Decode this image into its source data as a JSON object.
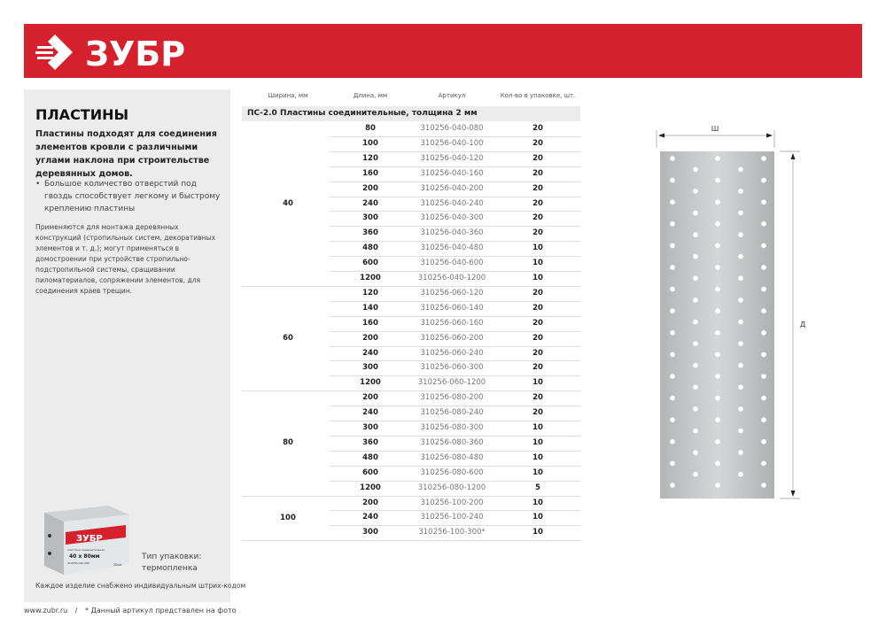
{
  "brand": {
    "logo_text": "ЗУБР",
    "color": "#d5202e"
  },
  "left": {
    "title": "ПЛАСТИНЫ",
    "lead": "Пластины подходят для соединения элементов кровли с различными углами наклона при строительстве деревянных домов.",
    "bullet": "Большое количество отверстий под гвоздь способствует легкому и быстрому креплению пластины",
    "apply": "Применяются для монтажа деревянных конструкций (стропильных систем, декоративных элементов и т. д.); могут применяться в домостроении при устройстве стропильно-подстропильной системы, сращивании пиломатериалов, сопряжении элементов, для соединения краев трещин.",
    "pack_type": "Тип упаковки: термопленка",
    "barcode_note": "Каждое изделие снабжено индивидуальным штрих-кодом",
    "box_label": {
      "brand": "ЗУБР",
      "name": "пластина соединительная",
      "size": "40 х 80мм",
      "article": "310256-040-080",
      "qty": "20шт"
    }
  },
  "footer": {
    "site": "www.zubr.ru",
    "separator": "/",
    "note": "* Данный артикул представлен на фото"
  },
  "table": {
    "headers": [
      "Ширина, мм",
      "Длина, мм",
      "Артикул",
      "Кол-во в упаковке, шт."
    ],
    "group_title": "ПС-2.0  Пластины соединительные, толщина 2 мм",
    "groups": [
      {
        "width": "40",
        "rows": [
          [
            "80",
            "310256-040-080",
            "20"
          ],
          [
            "100",
            "310256-040-100",
            "20"
          ],
          [
            "120",
            "310256-040-120",
            "20"
          ],
          [
            "160",
            "310256-040-160",
            "20"
          ],
          [
            "200",
            "310256-040-200",
            "20"
          ],
          [
            "240",
            "310256-040-240",
            "20"
          ],
          [
            "300",
            "310256-040-300",
            "20"
          ],
          [
            "360",
            "310256-040-360",
            "20"
          ],
          [
            "480",
            "310256-040-480",
            "10"
          ],
          [
            "600",
            "310256-040-600",
            "10"
          ],
          [
            "1200",
            "310256-040-1200",
            "10"
          ]
        ]
      },
      {
        "width": "60",
        "rows": [
          [
            "120",
            "310256-060-120",
            "20"
          ],
          [
            "140",
            "310256-060-140",
            "20"
          ],
          [
            "160",
            "310256-060-160",
            "20"
          ],
          [
            "200",
            "310256-060-200",
            "20"
          ],
          [
            "240",
            "310256-060-240",
            "20"
          ],
          [
            "300",
            "310256-060-300",
            "20"
          ],
          [
            "1200",
            "310256-060-1200",
            "10"
          ]
        ]
      },
      {
        "width": "80",
        "rows": [
          [
            "200",
            "310256-080-200",
            "20"
          ],
          [
            "240",
            "310256-080-240",
            "20"
          ],
          [
            "300",
            "310256-080-300",
            "10"
          ],
          [
            "360",
            "310256-080-360",
            "10"
          ],
          [
            "480",
            "310256-080-480",
            "10"
          ],
          [
            "600",
            "310256-080-600",
            "10"
          ],
          [
            "1200",
            "310256-080-1200",
            "5"
          ]
        ]
      },
      {
        "width": "100",
        "rows": [
          [
            "200",
            "310256-100-200",
            "10"
          ],
          [
            "240",
            "310256-100-240",
            "10"
          ],
          [
            "300",
            "310256-100-300*",
            "10"
          ]
        ]
      }
    ]
  },
  "drawing": {
    "width_label": "Ш",
    "length_label": "Д"
  }
}
